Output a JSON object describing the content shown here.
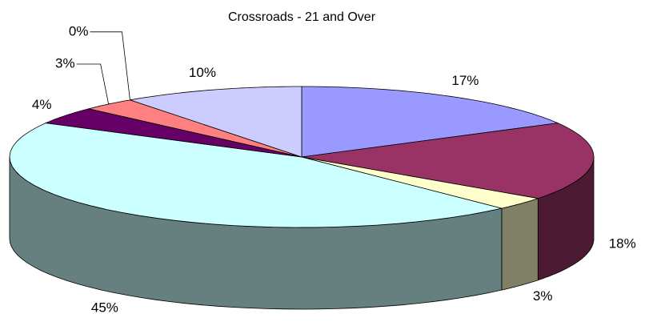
{
  "chart_data": {
    "type": "pie3d",
    "title": "Crossroads - 21 and Over",
    "values": [
      17,
      18,
      3,
      45,
      4,
      3,
      0,
      10
    ],
    "value_labels": [
      "17%",
      "18%",
      "3%",
      "45%",
      "4%",
      "3%",
      "0%",
      "10%"
    ],
    "colors": [
      "#9999ff",
      "#993366",
      "#ffffcc",
      "#ccffff",
      "#660066",
      "#ff8080",
      "#0066cc",
      "#ccccff"
    ]
  }
}
